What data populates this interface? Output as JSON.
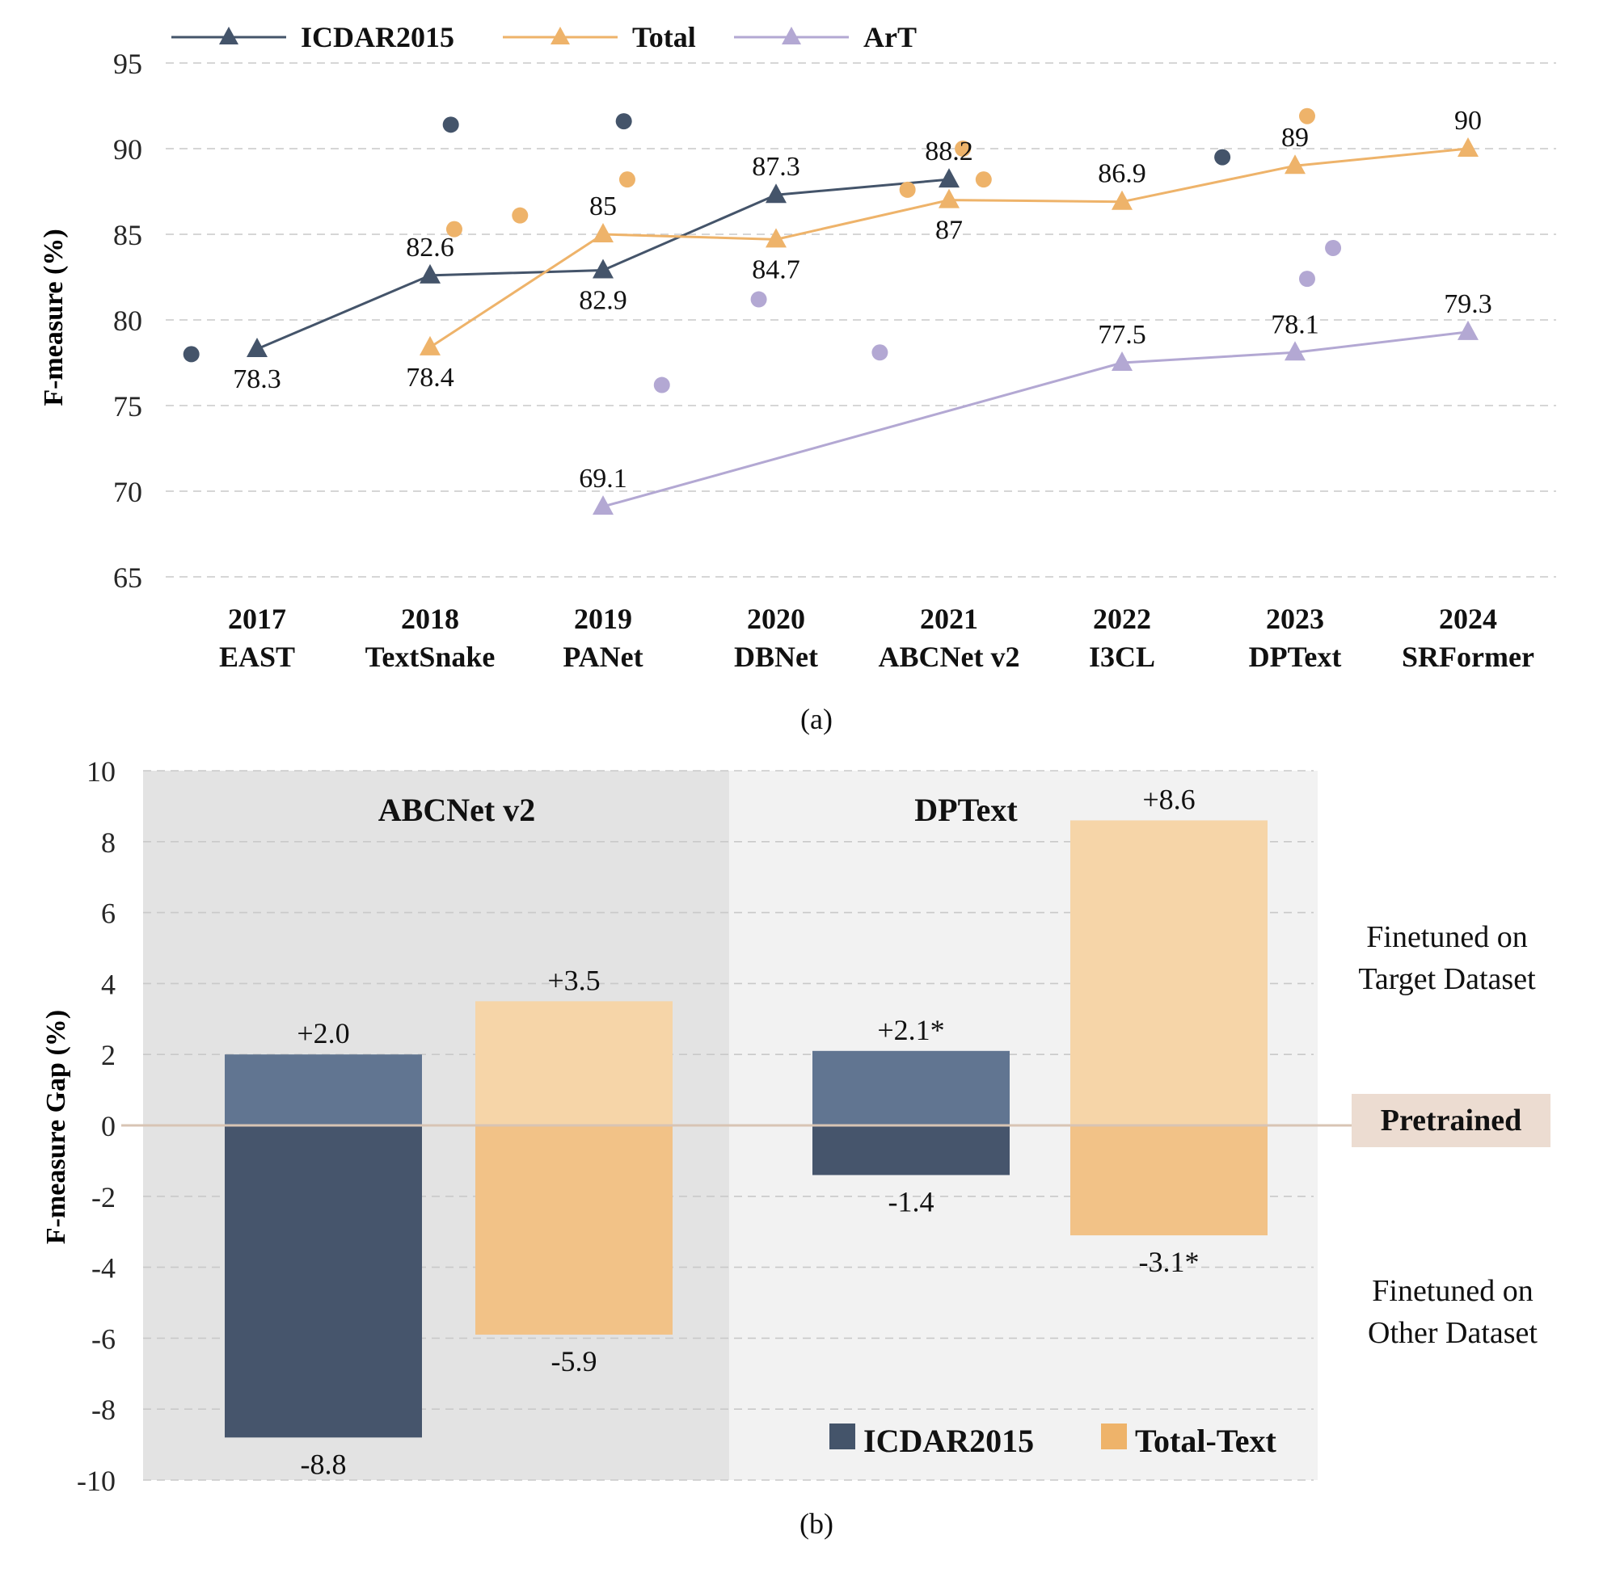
{
  "colors": {
    "icdar": "#44546a",
    "total": "#eeb36a",
    "art": "#b3a8d3",
    "grid": "#c9c9c9",
    "axis_text": "#262626",
    "icdar_pos": "#617591",
    "icdar_neg": "#46556c",
    "total_pos": "#f6d5a8",
    "total_neg": "#f2c287",
    "panel_left": "#e3e3e3",
    "panel_right": "#f2f2f2",
    "pretrained_line": "#d8c4b4",
    "pretrained_box": "#ecdcd1"
  },
  "chart_data": [
    {
      "type": "line",
      "panel_caption": "(a)",
      "ylabel": "F-measure (%)",
      "ylim": [
        65,
        95
      ],
      "yticks": [
        65,
        70,
        75,
        80,
        85,
        90,
        95
      ],
      "grid": true,
      "legend_position": "top-left",
      "categories": [
        {
          "year": "2017",
          "method": "EAST"
        },
        {
          "year": "2018",
          "method": "TextSnake"
        },
        {
          "year": "2019",
          "method": "PANet"
        },
        {
          "year": "2020",
          "method": "DBNet"
        },
        {
          "year": "2021",
          "method": "ABCNet v2"
        },
        {
          "year": "2022",
          "method": "I3CL"
        },
        {
          "year": "2023",
          "method": "DPText"
        },
        {
          "year": "2024",
          "method": "SRFormer"
        }
      ],
      "series": [
        {
          "name": "ICDAR2015",
          "color_key": "icdar",
          "points": [
            {
              "x": 0,
              "y": 78.3,
              "label": "78.3",
              "label_pos": "below"
            },
            {
              "x": 1,
              "y": 82.6,
              "label": "82.6",
              "label_pos": "above"
            },
            {
              "x": 2,
              "y": 82.9,
              "label": "82.9",
              "label_pos": "below"
            },
            {
              "x": 3,
              "y": 87.3,
              "label": "87.3",
              "label_pos": "above"
            },
            {
              "x": 4,
              "y": 88.2,
              "label": "88.2",
              "label_pos": "above"
            }
          ],
          "scatter": [
            {
              "x": -0.38,
              "y": 78.0
            },
            {
              "x": 1.12,
              "y": 91.4
            },
            {
              "x": 2.12,
              "y": 91.6
            },
            {
              "x": 5.58,
              "y": 89.5
            }
          ]
        },
        {
          "name": "Total",
          "color_key": "total",
          "points": [
            {
              "x": 1,
              "y": 78.4,
              "label": "78.4",
              "label_pos": "below"
            },
            {
              "x": 2,
              "y": 85.0,
              "label": "85",
              "label_pos": "above"
            },
            {
              "x": 3,
              "y": 84.7,
              "label": "84.7",
              "label_pos": "below"
            },
            {
              "x": 4,
              "y": 87.0,
              "label": "87",
              "label_pos": "below"
            },
            {
              "x": 5,
              "y": 86.9,
              "label": "86.9",
              "label_pos": "above"
            },
            {
              "x": 6,
              "y": 89.0,
              "label": "89",
              "label_pos": "above"
            },
            {
              "x": 7,
              "y": 90.0,
              "label": "90",
              "label_pos": "above"
            }
          ],
          "scatter": [
            {
              "x": 1.14,
              "y": 85.3
            },
            {
              "x": 1.52,
              "y": 86.1
            },
            {
              "x": 2.14,
              "y": 88.2
            },
            {
              "x": 3.76,
              "y": 87.6
            },
            {
              "x": 4.08,
              "y": 90.0
            },
            {
              "x": 4.2,
              "y": 88.2
            },
            {
              "x": 6.07,
              "y": 91.9
            }
          ]
        },
        {
          "name": "ArT",
          "color_key": "art",
          "points": [
            {
              "x": 2,
              "y": 69.1,
              "label": "69.1",
              "label_pos": "above"
            },
            {
              "x": 5,
              "y": 77.5,
              "label": "77.5",
              "label_pos": "above"
            },
            {
              "x": 6,
              "y": 78.1,
              "label": "78.1",
              "label_pos": "above"
            },
            {
              "x": 7,
              "y": 79.3,
              "label": "79.3",
              "label_pos": "above"
            }
          ],
          "scatter": [
            {
              "x": 2.34,
              "y": 76.2
            },
            {
              "x": 2.9,
              "y": 81.2
            },
            {
              "x": 3.6,
              "y": 78.1
            },
            {
              "x": 6.07,
              "y": 82.4
            },
            {
              "x": 6.22,
              "y": 84.2
            }
          ]
        }
      ]
    },
    {
      "type": "bar",
      "panel_caption": "(b)",
      "ylabel": "F-measure Gap (%)",
      "ylim": [
        -10,
        10
      ],
      "yticks": [
        -10,
        -8,
        -6,
        -4,
        -2,
        0,
        2,
        4,
        6,
        8,
        10
      ],
      "grid": true,
      "legend_position": "bottom-right",
      "legend": [
        {
          "name": "ICDAR2015",
          "color_key": "icdar"
        },
        {
          "name": "Total-Text",
          "color_key": "total"
        }
      ],
      "baseline_label": "Pretrained",
      "region_labels": [
        {
          "lines": [
            "Finetuned on",
            "Target Dataset"
          ],
          "position": "above-baseline"
        },
        {
          "lines": [
            "Finetuned on",
            "Other Dataset"
          ],
          "position": "below-baseline"
        }
      ],
      "groups": [
        {
          "name": "ABCNet v2",
          "bars": [
            {
              "series": "ICDAR2015",
              "pos": 2.0,
              "neg": -8.8,
              "pos_label": "+2.0",
              "neg_label": "-8.8"
            },
            {
              "series": "Total-Text",
              "pos": 3.5,
              "neg": -5.9,
              "pos_label": "+3.5",
              "neg_label": "-5.9"
            }
          ]
        },
        {
          "name": "DPText",
          "bars": [
            {
              "series": "ICDAR2015",
              "pos": 2.1,
              "neg": -1.4,
              "pos_label": "+2.1*",
              "neg_label": "-1.4"
            },
            {
              "series": "Total-Text",
              "pos": 8.6,
              "neg": -3.1,
              "pos_label": "+8.6",
              "neg_label": "-3.1*"
            }
          ]
        }
      ]
    }
  ]
}
